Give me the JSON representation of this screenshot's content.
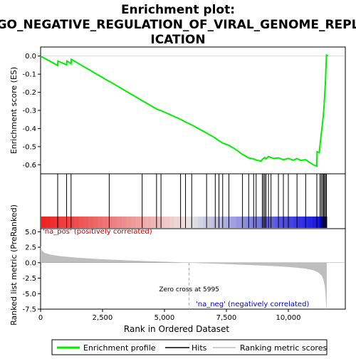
{
  "title_line1": "Enrichment plot:",
  "title_line2": "GO_NEGATIVE_REGULATION_OF_VIRAL_GENOME_REPL",
  "title_line3": "ICATION",
  "colors": {
    "enrichment_line": "#00ee00",
    "hits": "#000000",
    "metric_fill": "#bebebe",
    "zero_cross_line": "#aaaaaa",
    "pos_label": "#cc0000",
    "neg_label": "#0000cc",
    "heat_pos": "#ee0000",
    "heat_neg": "#0000cc"
  },
  "chart_data": {
    "type": "line",
    "panels": {
      "es": {
        "ylabel": "Enrichment score (ES)",
        "ylim": [
          -0.65,
          0.05
        ],
        "yticks": [
          0.0,
          -0.1,
          -0.2,
          -0.3,
          -0.4,
          -0.5,
          -0.6
        ],
        "ytick_labels": [
          "0.0",
          "-0.1",
          "-0.2",
          "-0.3",
          "-0.4",
          "-0.5",
          "-0.6"
        ],
        "series_name": "Enrichment profile",
        "points": [
          [
            0,
            0.0
          ],
          [
            690,
            -0.052
          ],
          [
            700,
            -0.028
          ],
          [
            1050,
            -0.048
          ],
          [
            1060,
            -0.027
          ],
          [
            1230,
            -0.042
          ],
          [
            1240,
            -0.018
          ],
          [
            2770,
            -0.14
          ],
          [
            2780,
            -0.14
          ],
          [
            4100,
            -0.246
          ],
          [
            4680,
            -0.292
          ],
          [
            4860,
            -0.301
          ],
          [
            5650,
            -0.349
          ],
          [
            5850,
            -0.364
          ],
          [
            6100,
            -0.38
          ],
          [
            6700,
            -0.425
          ],
          [
            7050,
            -0.452
          ],
          [
            7200,
            -0.468
          ],
          [
            7350,
            -0.48
          ],
          [
            7600,
            -0.493
          ],
          [
            7850,
            -0.513
          ],
          [
            8150,
            -0.543
          ],
          [
            8400,
            -0.562
          ],
          [
            8600,
            -0.568
          ],
          [
            8700,
            -0.574
          ],
          [
            8900,
            -0.58
          ],
          [
            8950,
            -0.57
          ],
          [
            9050,
            -0.56
          ],
          [
            9100,
            -0.568
          ],
          [
            9200,
            -0.554
          ],
          [
            9300,
            -0.56
          ],
          [
            9400,
            -0.565
          ],
          [
            9600,
            -0.562
          ],
          [
            9800,
            -0.572
          ],
          [
            10000,
            -0.565
          ],
          [
            10200,
            -0.575
          ],
          [
            10350,
            -0.566
          ],
          [
            10500,
            -0.576
          ],
          [
            10700,
            -0.572
          ],
          [
            11000,
            -0.6
          ],
          [
            11150,
            -0.608
          ],
          [
            11160,
            -0.528
          ],
          [
            11250,
            -0.533
          ],
          [
            11280,
            -0.49
          ],
          [
            11320,
            -0.44
          ],
          [
            11360,
            -0.395
          ],
          [
            11400,
            -0.345
          ],
          [
            11440,
            -0.28
          ],
          [
            11470,
            -0.21
          ],
          [
            11500,
            -0.14
          ],
          [
            11520,
            -0.06
          ],
          [
            11540,
            0.005
          ],
          [
            11600,
            0.003
          ]
        ]
      },
      "hits": {
        "positions": [
          690,
          1050,
          1230,
          2770,
          4100,
          4680,
          4860,
          5650,
          5850,
          6100,
          6700,
          7050,
          7200,
          7350,
          7600,
          8150,
          8400,
          8600,
          8700,
          8950,
          9000,
          9050,
          9100,
          9200,
          9300,
          9600,
          9800,
          10000,
          10350,
          10700,
          11150,
          11280,
          11330,
          11380,
          11420,
          11460,
          11500,
          11540
        ]
      },
      "metric": {
        "ylabel": "Ranked list metric (PreRanked)",
        "ylim": [
          -7.5,
          5.5
        ],
        "yticks": [
          5.0,
          2.5,
          0.0,
          -2.5,
          -5.0,
          -7.5
        ],
        "ytick_labels": [
          "5.0",
          "2.5",
          "0.0",
          "-2.5",
          "-5.0",
          "-7.5"
        ],
        "series_name": "Ranking metric scores",
        "points": [
          [
            0,
            2.7
          ],
          [
            50,
            2.0
          ],
          [
            150,
            1.6
          ],
          [
            400,
            1.3
          ],
          [
            800,
            1.05
          ],
          [
            1500,
            0.8
          ],
          [
            2500,
            0.55
          ],
          [
            3500,
            0.38
          ],
          [
            4500,
            0.22
          ],
          [
            5500,
            0.08
          ],
          [
            5995,
            0.0
          ],
          [
            6500,
            -0.08
          ],
          [
            7500,
            -0.22
          ],
          [
            8500,
            -0.38
          ],
          [
            9500,
            -0.56
          ],
          [
            10200,
            -0.75
          ],
          [
            10700,
            -0.95
          ],
          [
            11000,
            -1.2
          ],
          [
            11200,
            -1.55
          ],
          [
            11350,
            -2.1
          ],
          [
            11420,
            -2.8
          ],
          [
            11470,
            -3.8
          ],
          [
            11500,
            -5.0
          ],
          [
            11520,
            -6.3
          ],
          [
            11540,
            -7.5
          ],
          [
            11550,
            -7.5
          ]
        ],
        "zero_cross_rank": 5995,
        "zero_cross_label": "Zero cross at 5995",
        "pos_label": "'na_pos' (positively correlated)",
        "neg_label": "'na_neg' (negatively correlated)"
      }
    },
    "xlabel": "Rank in Ordered Dataset",
    "xlim": [
      0,
      12300
    ],
    "xticks": [
      0,
      2500,
      5000,
      7500,
      10000
    ],
    "xtick_labels": [
      "0",
      "2,500",
      "5,000",
      "7,500",
      "10,000"
    ],
    "n_ranks": 11550,
    "grid": false,
    "legend": {
      "placement": "bottom",
      "entries": [
        "Enrichment profile",
        "Hits",
        "Ranking metric scores"
      ]
    }
  }
}
